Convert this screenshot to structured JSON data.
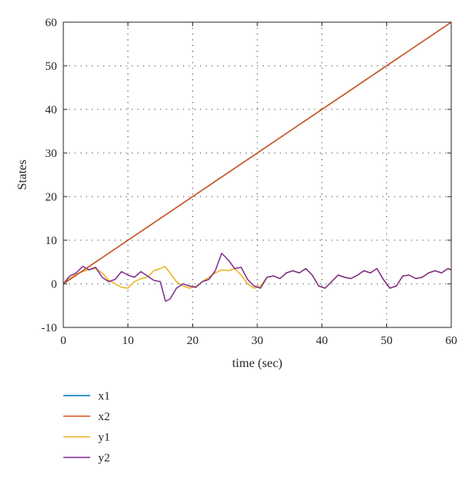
{
  "chart_data": {
    "type": "line",
    "title": "",
    "xlabel": "time (sec)",
    "ylabel": "States",
    "xlim": [
      0,
      60
    ],
    "ylim": [
      -10,
      60
    ],
    "xticks": [
      0,
      10,
      20,
      30,
      40,
      50,
      60
    ],
    "yticks": [
      -10,
      0,
      10,
      20,
      30,
      40,
      50,
      60
    ],
    "grid": true,
    "legend_position": "below-left",
    "series": [
      {
        "name": "x1",
        "color": "#0072BD",
        "x": [
          0,
          60
        ],
        "y": [
          0,
          60
        ]
      },
      {
        "name": "x2",
        "color": "#D95319",
        "x": [
          0,
          60
        ],
        "y": [
          0,
          60
        ]
      },
      {
        "name": "y1",
        "color": "#EDB120",
        "x": [
          0,
          1,
          2,
          3,
          4,
          5,
          6,
          7,
          8,
          9,
          10,
          11,
          12,
          13,
          14,
          15,
          15.7,
          16.5,
          17.5,
          18.5,
          19.5,
          20.5,
          21.5,
          22.5,
          23.5,
          24.5,
          25.5,
          26.5,
          27.5,
          28.5,
          29.5,
          30.5,
          31.5,
          32.5,
          33.5,
          34.5,
          35.5,
          36.5,
          37.5,
          38.5,
          39.5,
          40.5,
          41.5,
          42.5,
          43.5,
          44.5,
          45.5,
          46.5,
          47.5,
          48.5,
          49.5,
          50.5,
          51.5,
          52.5,
          53.5,
          54.5,
          55.5,
          56.5,
          57.5,
          58.5,
          59.5,
          60
        ],
        "y": [
          0,
          1.2,
          2.2,
          2.8,
          3.3,
          3.5,
          2.5,
          0.8,
          0,
          -0.8,
          -1,
          0.5,
          1.2,
          1.5,
          3.0,
          3.5,
          4.0,
          2.5,
          0.5,
          -0.5,
          -1,
          -0.6,
          0.5,
          1.5,
          2.5,
          3.2,
          3.0,
          3.5,
          2.0,
          0,
          -1,
          -0.5,
          1.5,
          1.8,
          1.2,
          2.5,
          3.0,
          2.5,
          3.5,
          2.0,
          -0.5,
          -1,
          0.5,
          2.0,
          1.5,
          1.2,
          2.0,
          3.0,
          2.5,
          3.5,
          1.0,
          -1,
          -0.5,
          1.8,
          2.0,
          1.2,
          1.5,
          2.5,
          3.0,
          2.5,
          3.5,
          3.2
        ]
      },
      {
        "name": "y2",
        "color": "#7E2F8E",
        "x": [
          0,
          1,
          2,
          3,
          4,
          5,
          6,
          7,
          8,
          9,
          10,
          11,
          12,
          13,
          14,
          15,
          15.8,
          16.5,
          17.5,
          18.5,
          19.5,
          20.5,
          21.5,
          22.5,
          23.5,
          24.5,
          25.5,
          26.5,
          27.5,
          28.5,
          29.5,
          30.5,
          31.5,
          32.5,
          33.5,
          34.5,
          35.5,
          36.5,
          37.5,
          38.5,
          39.5,
          40.5,
          41.5,
          42.5,
          43.5,
          44.5,
          45.5,
          46.5,
          47.5,
          48.5,
          49.5,
          50.5,
          51.5,
          52.5,
          53.5,
          54.5,
          55.5,
          56.5,
          57.5,
          58.5,
          59.5,
          60
        ],
        "y": [
          0,
          1.8,
          2.5,
          4.0,
          3.2,
          3.8,
          1.5,
          0.5,
          1.0,
          2.8,
          2.0,
          1.5,
          2.8,
          1.8,
          0.8,
          0.5,
          -4.0,
          -3.5,
          -1.0,
          0,
          -0.5,
          -0.8,
          0.5,
          1.0,
          3.0,
          7.0,
          5.5,
          3.5,
          3.8,
          1.0,
          -0.5,
          -1.0,
          1.5,
          1.8,
          1.2,
          2.5,
          3.0,
          2.5,
          3.5,
          2.0,
          -0.5,
          -1.0,
          0.5,
          2.0,
          1.5,
          1.2,
          2.0,
          3.0,
          2.5,
          3.5,
          1.0,
          -1.0,
          -0.5,
          1.8,
          2.0,
          1.2,
          1.5,
          2.5,
          3.0,
          2.5,
          3.5,
          3.2
        ]
      }
    ]
  }
}
